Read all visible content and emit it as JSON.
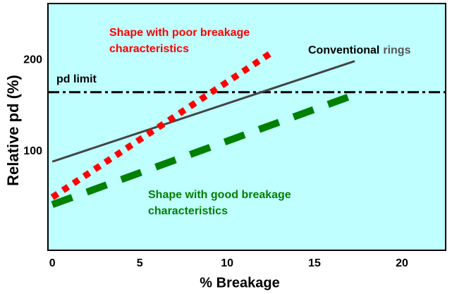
{
  "chart_data": {
    "type": "line",
    "x_label": "% Breakage",
    "y_label": "Relative pd (%)",
    "xlim": [
      -0.25,
      22.5
    ],
    "ylim": [
      -8,
      262
    ],
    "xticks": [
      0,
      5,
      10,
      15,
      20
    ],
    "yticks": [
      100,
      200
    ],
    "background": "#bfffff",
    "reference_line": {
      "label": "pd limit",
      "value": 165,
      "color": "#000000"
    },
    "series": [
      {
        "label_parts": [
          "Conventional",
          "rings"
        ],
        "label_colors": [
          "#000000",
          "#555555"
        ],
        "color": "#444444",
        "style": "solid",
        "x": [
          0,
          17.3
        ],
        "values": [
          89,
          199
        ]
      },
      {
        "label_lines": [
          "Shape with poor breakage",
          "characteristics"
        ],
        "color": "#ff0000",
        "style": "dotted",
        "x": [
          0,
          12.6
        ],
        "values": [
          50,
          209
        ]
      },
      {
        "label_lines": [
          "Shape with good breakage",
          "characteristics"
        ],
        "color": "#008000",
        "style": "dashed",
        "x": [
          0,
          17.7
        ],
        "values": [
          42,
          165
        ]
      }
    ]
  }
}
